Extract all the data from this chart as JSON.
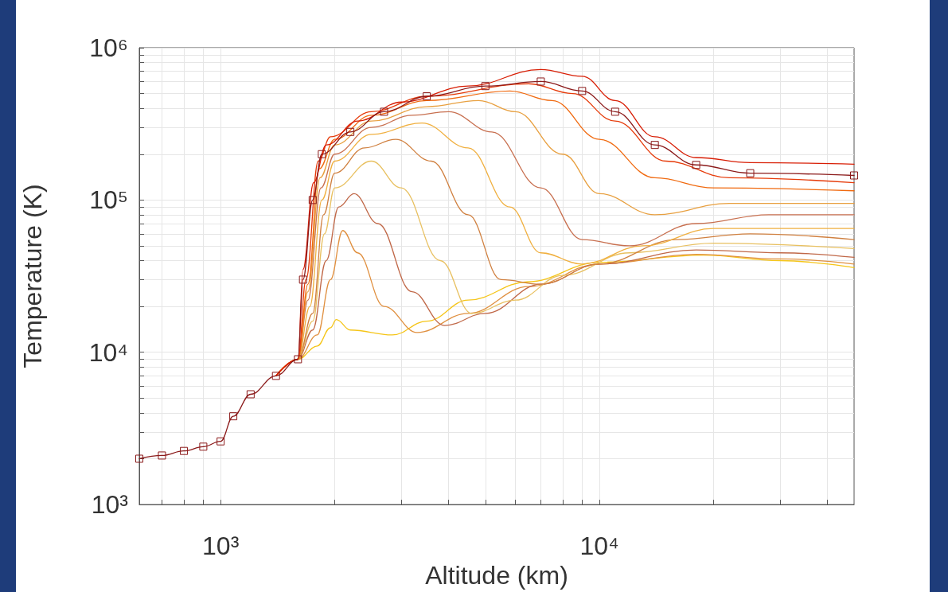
{
  "chart_data": {
    "type": "line",
    "xlabel": "Altitude (km)",
    "ylabel": "Temperature (K)",
    "log": "xy",
    "grid": true,
    "marker": "none",
    "line_style": "solid",
    "xlim": [
      610,
      47000
    ],
    "ylim": [
      1000,
      1000000
    ],
    "xticks": [
      {
        "value": 700,
        "label": null
      },
      {
        "value": 800,
        "label": null
      },
      {
        "value": 900,
        "label": null
      },
      {
        "value": 1000,
        "label": "10³"
      },
      {
        "value": 2000,
        "label": null
      },
      {
        "value": 3000,
        "label": null
      },
      {
        "value": 4000,
        "label": null
      },
      {
        "value": 5000,
        "label": null
      },
      {
        "value": 6000,
        "label": null
      },
      {
        "value": 7000,
        "label": null
      },
      {
        "value": 8000,
        "label": null
      },
      {
        "value": 9000,
        "label": null
      },
      {
        "value": 10000,
        "label": "10⁴"
      },
      {
        "value": 20000,
        "label": null
      },
      {
        "value": 30000,
        "label": null
      },
      {
        "value": 40000,
        "label": null
      }
    ],
    "yticks": [
      {
        "value": 1000,
        "label": "10³"
      },
      {
        "value": 2000,
        "label": null
      },
      {
        "value": 3000,
        "label": null
      },
      {
        "value": 4000,
        "label": null
      },
      {
        "value": 5000,
        "label": null
      },
      {
        "value": 6000,
        "label": null
      },
      {
        "value": 7000,
        "label": null
      },
      {
        "value": 8000,
        "label": null
      },
      {
        "value": 9000,
        "label": null
      },
      {
        "value": 10000,
        "label": "10⁴"
      },
      {
        "value": 20000,
        "label": null
      },
      {
        "value": 30000,
        "label": null
      },
      {
        "value": 40000,
        "label": null
      },
      {
        "value": 50000,
        "label": null
      },
      {
        "value": 60000,
        "label": null
      },
      {
        "value": 70000,
        "label": null
      },
      {
        "value": 80000,
        "label": null
      },
      {
        "value": 90000,
        "label": null
      },
      {
        "value": 100000,
        "label": "10⁵"
      },
      {
        "value": 200000,
        "label": null
      },
      {
        "value": 300000,
        "label": null
      },
      {
        "value": 400000,
        "label": null
      },
      {
        "value": 500000,
        "label": null
      },
      {
        "value": 600000,
        "label": null
      },
      {
        "value": 700000,
        "label": null
      },
      {
        "value": 800000,
        "label": null
      },
      {
        "value": 900000,
        "label": null
      },
      {
        "value": 1000000,
        "label": "10⁶"
      }
    ],
    "series": [
      {
        "color": "#8b1a1a",
        "marker": "square",
        "x": [
          610,
          700,
          800,
          900,
          1000,
          1080,
          1200,
          1400,
          1600,
          1650,
          1750,
          1850,
          2200,
          2700,
          3500,
          5000,
          7000,
          9000,
          11000,
          14000,
          18000,
          25000,
          47000
        ],
        "values": [
          2000,
          2100,
          2250,
          2400,
          2600,
          3800,
          5300,
          7000,
          9000,
          30000,
          100000,
          200000,
          280000,
          380000,
          480000,
          560000,
          600000,
          520000,
          380000,
          230000,
          170000,
          150000,
          145000
        ]
      },
      {
        "color": "#f5c518",
        "x": [
          1400,
          1600,
          1800,
          1950,
          2020,
          2200,
          2840,
          3500,
          4500,
          6450,
          10000,
          18800,
          30000,
          47000
        ],
        "values": [
          7000,
          9000,
          11000,
          14500,
          16400,
          14000,
          13000,
          16000,
          22000,
          29000,
          39000,
          43500,
          40000,
          36000
        ]
      },
      {
        "color": "#e09040",
        "x": [
          1400,
          1600,
          1800,
          1950,
          2100,
          2300,
          2700,
          3300,
          4500,
          6500,
          10000,
          18000,
          30000,
          47000
        ],
        "values": [
          7000,
          9000,
          13000,
          30000,
          63000,
          45000,
          20000,
          13500,
          18000,
          27000,
          38000,
          44000,
          41000,
          38000
        ]
      },
      {
        "color": "#c06848",
        "x": [
          1400,
          1600,
          1750,
          1900,
          2050,
          2250,
          2600,
          3200,
          3900,
          5000,
          7000,
          10000,
          18000,
          30000,
          47000
        ],
        "values": [
          7000,
          9000,
          14000,
          40000,
          90000,
          110000,
          70000,
          25000,
          15000,
          18000,
          28000,
          38000,
          47000,
          45000,
          42000
        ]
      },
      {
        "color": "#e8c060",
        "x": [
          1400,
          1600,
          1750,
          1880,
          2000,
          2500,
          3000,
          3800,
          4600,
          6000,
          8000,
          12000,
          20000,
          47000
        ],
        "values": [
          7000,
          9000,
          16000,
          60000,
          120000,
          180000,
          120000,
          40000,
          18000,
          22000,
          32000,
          45000,
          52000,
          48000
        ]
      },
      {
        "color": "#d08040",
        "x": [
          1400,
          1600,
          1750,
          1870,
          2000,
          2400,
          2900,
          3600,
          4500,
          5500,
          7000,
          10000,
          16000,
          25000,
          47000
        ],
        "values": [
          7000,
          9000,
          18000,
          80000,
          150000,
          220000,
          250000,
          180000,
          80000,
          30000,
          28000,
          38000,
          55000,
          60000,
          55000
        ]
      },
      {
        "color": "#f0b040",
        "x": [
          1400,
          1600,
          1720,
          1850,
          2000,
          2500,
          3400,
          4500,
          5800,
          7000,
          9000,
          13000,
          20000,
          47000
        ],
        "values": [
          7000,
          9000,
          20000,
          100000,
          180000,
          270000,
          320000,
          220000,
          90000,
          45000,
          38000,
          50000,
          65000,
          65000
        ]
      },
      {
        "color": "#c87050",
        "x": [
          1400,
          1600,
          1700,
          1840,
          2000,
          2500,
          3200,
          4000,
          5200,
          7000,
          9000,
          12000,
          18000,
          28000,
          47000
        ],
        "values": [
          7000,
          9000,
          22000,
          120000,
          200000,
          300000,
          360000,
          380000,
          280000,
          120000,
          55000,
          50000,
          70000,
          80000,
          80000
        ]
      },
      {
        "color": "#e8a040",
        "x": [
          1400,
          1600,
          1700,
          1830,
          2000,
          2500,
          3500,
          4800,
          6000,
          8000,
          10000,
          14000,
          22000,
          47000
        ],
        "values": [
          7000,
          9000,
          25000,
          140000,
          230000,
          330000,
          410000,
          450000,
          380000,
          200000,
          110000,
          80000,
          95000,
          95000
        ]
      },
      {
        "color": "#f06a10",
        "x": [
          1400,
          1600,
          1700,
          1820,
          2000,
          2500,
          3500,
          5800,
          7500,
          10000,
          14000,
          20000,
          47000
        ],
        "values": [
          7000,
          9000,
          28000,
          160000,
          250000,
          360000,
          450000,
          520000,
          450000,
          250000,
          140000,
          120000,
          115000
        ]
      },
      {
        "color": "#e63b0a",
        "x": [
          1400,
          1600,
          1680,
          1810,
          1950,
          2500,
          3500,
          6500,
          8500,
          11000,
          15000,
          22000,
          47000
        ],
        "values": [
          7000,
          9000,
          30000,
          180000,
          260000,
          380000,
          480000,
          580000,
          500000,
          330000,
          180000,
          140000,
          130000
        ]
      },
      {
        "color": "#d81e05",
        "x": [
          1400,
          1600,
          1650,
          1760,
          1900,
          2300,
          3000,
          4500,
          7000,
          9000,
          11000,
          14000,
          18000,
          25000,
          47000
        ],
        "values": [
          7000,
          9000,
          35000,
          130000,
          230000,
          330000,
          440000,
          560000,
          720000,
          650000,
          450000,
          260000,
          190000,
          176000,
          172000
        ]
      }
    ]
  }
}
